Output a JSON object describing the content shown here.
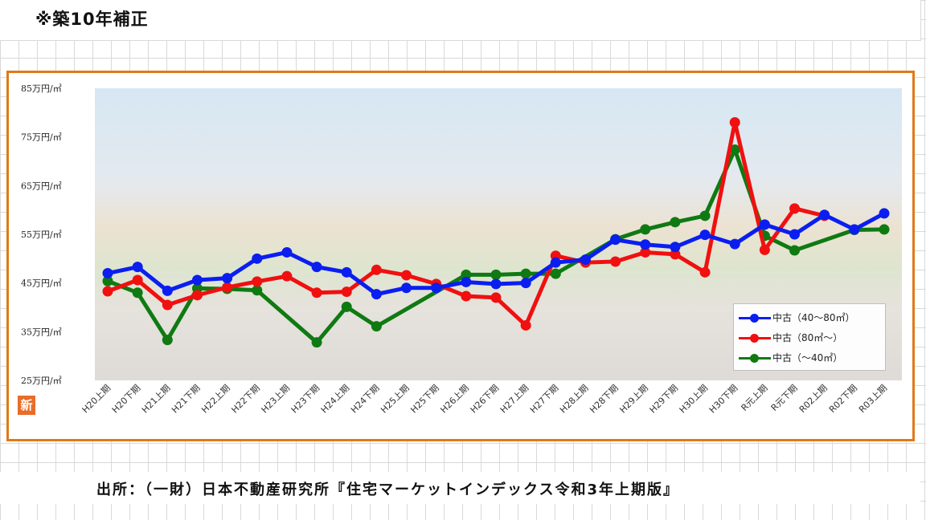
{
  "heading": "※築10年補正",
  "source": "出所：（一財）日本不動産研究所『住宅マーケットインデックス令和3年上期版』",
  "badge": "新",
  "chart_data": {
    "type": "line",
    "title": "",
    "xlabel": "",
    "ylabel": "",
    "ylim": [
      25,
      85
    ],
    "y_ticks": [
      85,
      75,
      65,
      55,
      45,
      35,
      25
    ],
    "y_tick_labels": [
      "85万円/㎡",
      "75万円/㎡",
      "65万円/㎡",
      "55万円/㎡",
      "45万円/㎡",
      "35万円/㎡",
      "25万円/㎡"
    ],
    "categories": [
      "H20上期",
      "H20下期",
      "H21上期",
      "H21下期",
      "H22上期",
      "H22下期",
      "H23上期",
      "H23下期",
      "H24上期",
      "H24下期",
      "H25上期",
      "H25下期",
      "H26上期",
      "H26下期",
      "H27上期",
      "H27下期",
      "H28上期",
      "H28下期",
      "H29上期",
      "H29下期",
      "H30上期",
      "H30下期",
      "R元上期",
      "R元下期",
      "R02上期",
      "R02下期",
      "R03上期"
    ],
    "grid": false,
    "legend_position": "bottom-right",
    "series": [
      {
        "name": "中古（40～80㎡）",
        "color": "#0a1ef0",
        "values": [
          47.0,
          48.3,
          43.4,
          45.6,
          46.0,
          50.0,
          51.3,
          48.3,
          47.2,
          42.7,
          44.0,
          44.0,
          45.2,
          44.8,
          45.0,
          49.2,
          49.8,
          53.9,
          52.9,
          52.4,
          54.9,
          53.0,
          57.0,
          55.0,
          59.0,
          56.0,
          59.3
        ]
      },
      {
        "name": "中古（80㎡～）",
        "color": "#f01010",
        "values": [
          43.3,
          45.6,
          40.5,
          42.5,
          44.1,
          45.3,
          46.4,
          43.0,
          43.2,
          47.7,
          46.6,
          44.8,
          42.3,
          42.0,
          36.3,
          50.6,
          49.2,
          49.4,
          51.3,
          50.9,
          47.2,
          78.0,
          51.8,
          60.3,
          58.8,
          null,
          null
        ]
      },
      {
        "name": "中古（～40㎡）",
        "color": "#0f7a12",
        "values": [
          45.4,
          43.0,
          33.3,
          43.9,
          43.8,
          43.5,
          null,
          32.8,
          40.1,
          36.1,
          null,
          null,
          46.7,
          46.7,
          46.9,
          46.9,
          null,
          54.0,
          56.0,
          57.5,
          58.8,
          72.4,
          54.7,
          51.7,
          null,
          55.9,
          56.0
        ]
      }
    ]
  }
}
